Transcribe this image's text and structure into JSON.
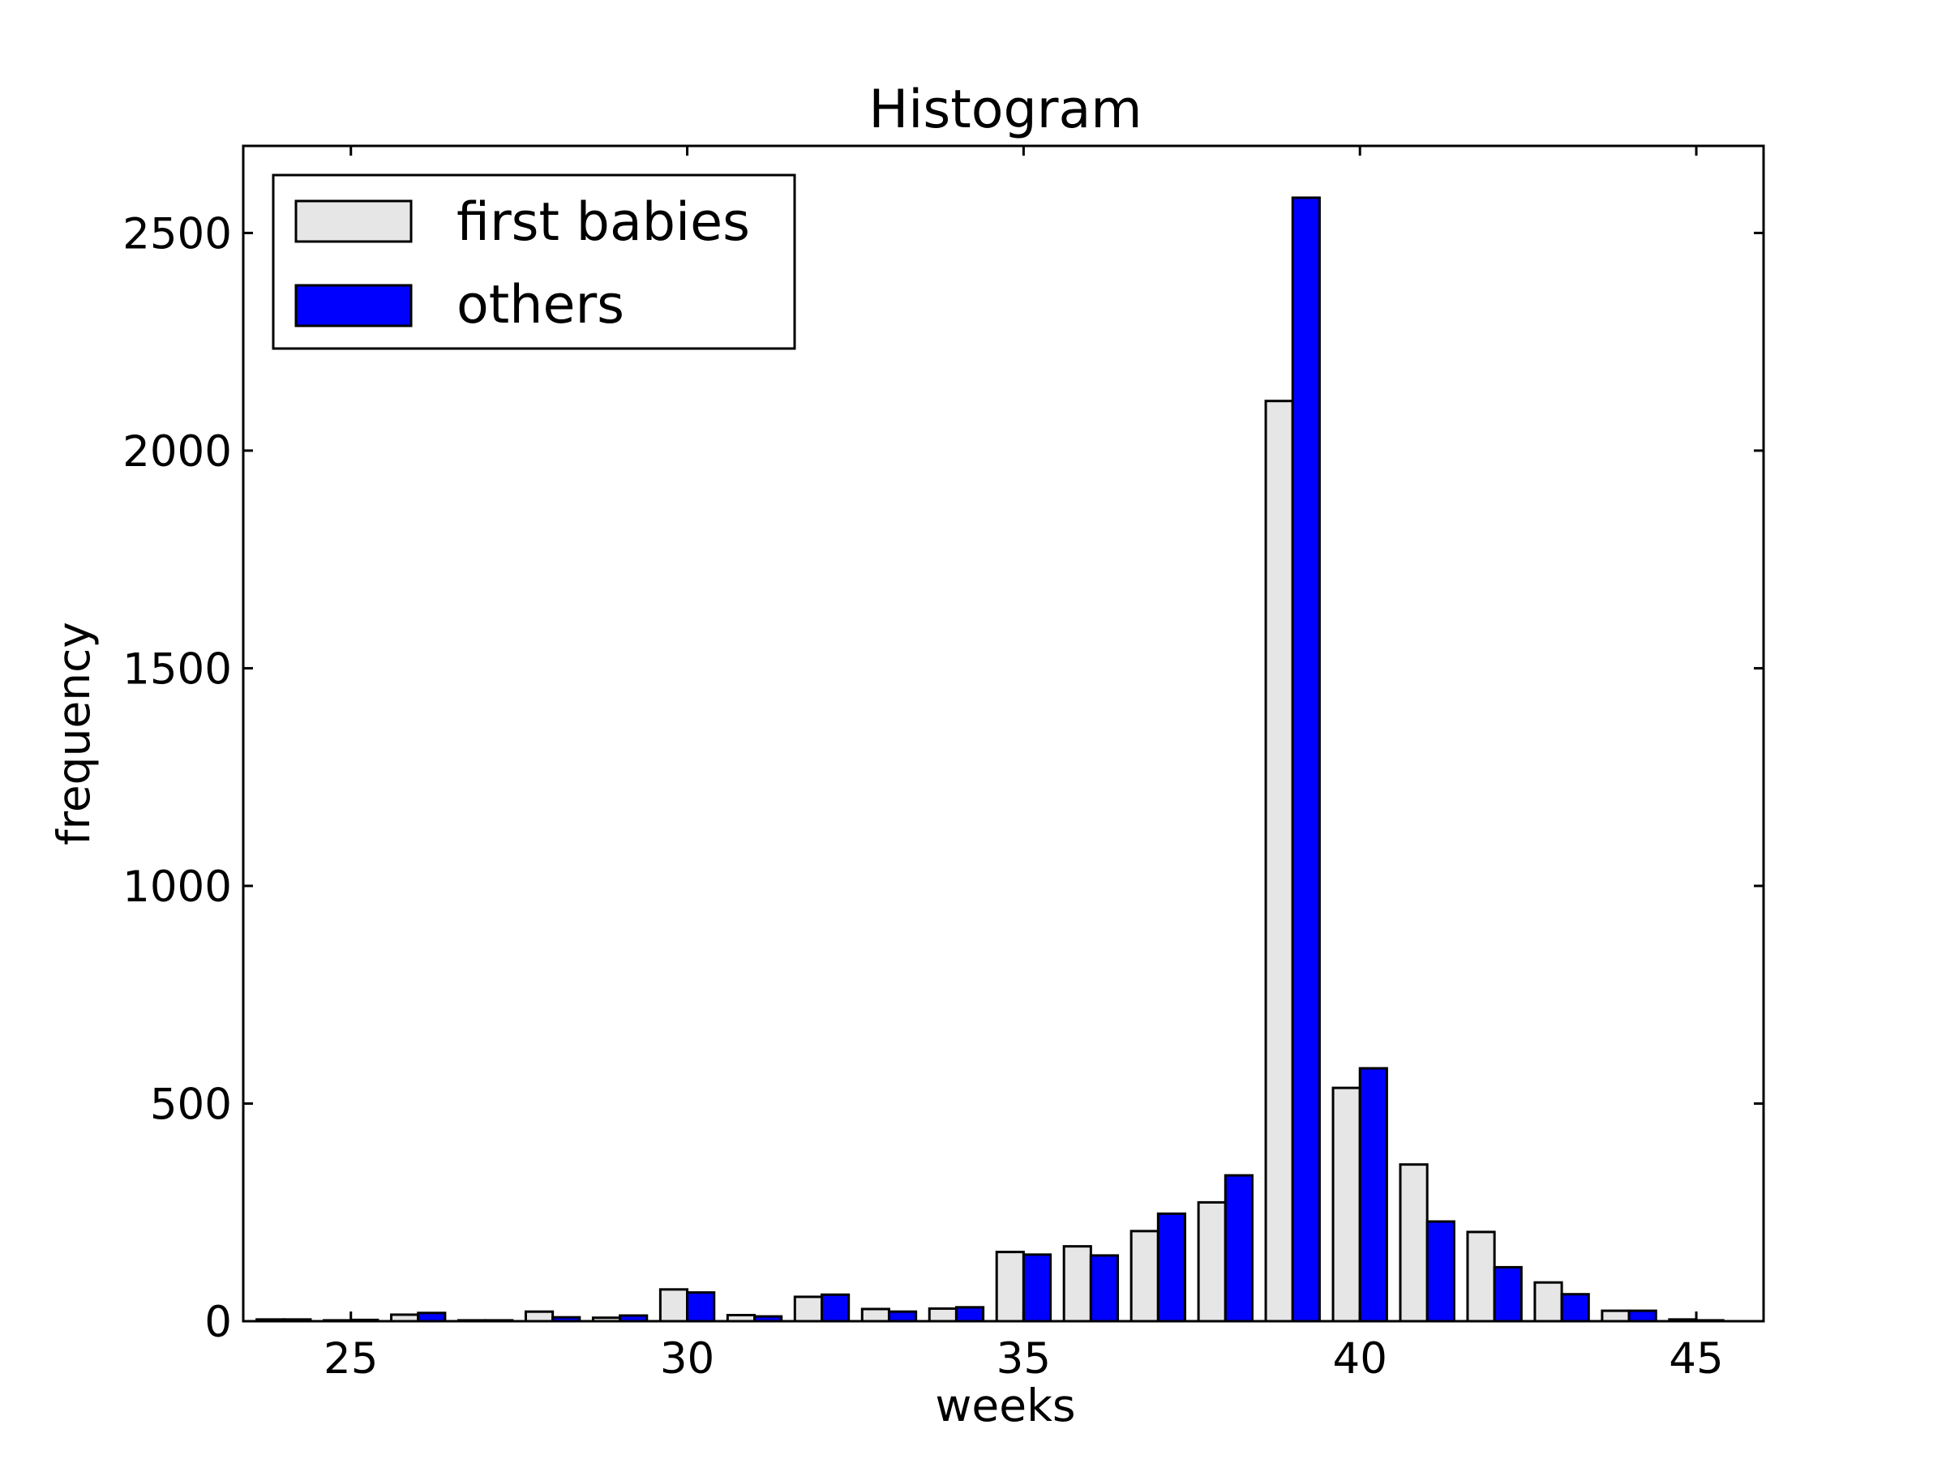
{
  "chart_data": {
    "type": "bar",
    "title": "Histogram",
    "xlabel": "weeks",
    "ylabel": "frequency",
    "xlim": [
      23.4,
      46.0
    ],
    "ylim": [
      0,
      2700
    ],
    "xticks": [
      25,
      30,
      35,
      40,
      45
    ],
    "yticks": [
      0,
      500,
      1000,
      1500,
      2000,
      2500
    ],
    "legend_position": "top-left",
    "grid": false,
    "x": [
      24,
      25,
      26,
      27,
      28,
      29,
      30,
      31,
      32,
      33,
      34,
      35,
      36,
      37,
      38,
      39,
      40,
      41,
      42,
      43,
      44,
      45
    ],
    "series": [
      {
        "name": "first babies",
        "color": "#e6e6e6",
        "values": [
          4,
          2,
          15,
          2,
          22,
          8,
          73,
          14,
          56,
          28,
          29,
          159,
          172,
          207,
          273,
          2114,
          536,
          360,
          205,
          89,
          24,
          4
        ]
      },
      {
        "name": "others",
        "color": "#0000ff",
        "values": [
          4,
          3,
          19,
          2,
          9,
          13,
          66,
          11,
          61,
          22,
          32,
          153,
          151,
          247,
          335,
          2581,
          581,
          229,
          124,
          62,
          24,
          2
        ]
      }
    ]
  }
}
